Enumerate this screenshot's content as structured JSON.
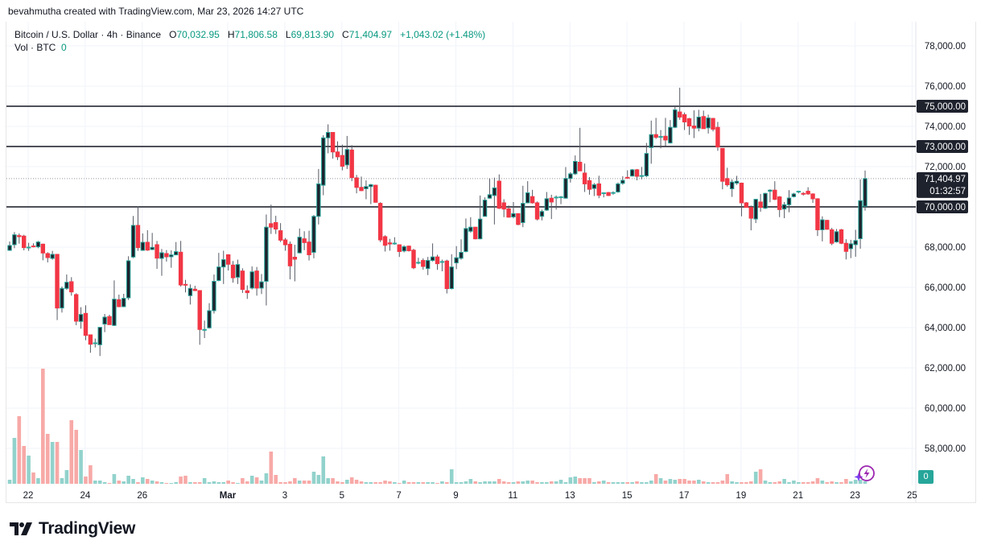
{
  "credit": "bevahmutha created with TradingView.com, Mar 23, 2026 14:27 UTC",
  "legend": {
    "symbol": "Bitcoin / U.S. Dollar · 4h · Binance",
    "open_label": "O",
    "open": "70,032.95",
    "high_label": "H",
    "high": "71,806.58",
    "low_label": "L",
    "low": "69,813.90",
    "close_label": "C",
    "close": "71,404.97",
    "change": "+1,043.02 (+1.48%)",
    "vol_label": "Vol · BTC",
    "vol_value": "0"
  },
  "price_axis": {
    "ticks": [
      "78,000.00",
      "76,000.00",
      "74,000.00",
      "72,000.00",
      "70,000.00",
      "68,000.00",
      "66,000.00",
      "64,000.00",
      "62,000.00",
      "60,000.00",
      "58,000.00"
    ],
    "last_price_label": "71,404.97",
    "countdown": "01:32:57",
    "vol_badge": "0"
  },
  "time_axis": {
    "ticks": [
      "22",
      "24",
      "26",
      "Mar",
      "3",
      "5",
      "7",
      "9",
      "11",
      "13",
      "15",
      "17",
      "19",
      "21",
      "23",
      "25"
    ]
  },
  "logo": {
    "text": "TradingView"
  },
  "colors": {
    "up": "#26a69a",
    "up_body": "#1e222d",
    "down": "#f23645",
    "vol_up": "#92d2cc",
    "vol_down": "#f7a9a7",
    "level_line": "#131722",
    "text_value": "#089981",
    "assistant_icon": "#9c27b0"
  },
  "icons": {
    "assistant": "lightning-circle-icon",
    "logo": "tradingview-logo-icon"
  },
  "chart_data": {
    "type": "candlestick",
    "interval": "4h",
    "ylim": [
      57000,
      79000
    ],
    "y_ticks": [
      58000,
      60000,
      62000,
      64000,
      66000,
      68000,
      70000,
      72000,
      74000,
      76000,
      78000
    ],
    "grid": true,
    "horizontal_levels": [
      {
        "price": 75000,
        "label": "75,000.00"
      },
      {
        "price": 73000,
        "label": "73,000.00"
      },
      {
        "price": 70000,
        "label": "70,000.00"
      }
    ],
    "last_price": 71404.97,
    "candles_ohlc": [
      [
        67840,
        68280,
        67814,
        68080
      ],
      [
        68120,
        68747,
        67947,
        68614
      ],
      [
        68574,
        68680,
        68174,
        68520
      ],
      [
        68547,
        68614,
        67840,
        67974
      ],
      [
        67987,
        68214,
        67814,
        68000
      ],
      [
        68054,
        68187,
        67987,
        68014
      ],
      [
        68014,
        68307,
        67947,
        68254
      ],
      [
        68147,
        68174,
        67347,
        67707
      ],
      [
        67680,
        67747,
        67241,
        67480
      ],
      [
        67440,
        67814,
        67374,
        67640
      ],
      [
        67640,
        67640,
        64375,
        64975
      ],
      [
        64975,
        66041,
        64748,
        65948
      ],
      [
        65948,
        66641,
        65881,
        66254
      ],
      [
        66281,
        66507,
        65588,
        65774
      ],
      [
        65641,
        65708,
        64121,
        64321
      ],
      [
        64308,
        65015,
        63948,
        64655
      ],
      [
        64708,
        65108,
        63375,
        63615
      ],
      [
        63641,
        63641,
        62749,
        63175
      ],
      [
        63215,
        63455,
        63015,
        63241
      ],
      [
        63148,
        64015,
        62589,
        64015
      ],
      [
        64175,
        64681,
        63775,
        64521
      ],
      [
        64548,
        64641,
        64148,
        64148
      ],
      [
        64108,
        66348,
        64081,
        65415
      ],
      [
        65388,
        65641,
        65015,
        65041
      ],
      [
        65041,
        65681,
        65015,
        65455
      ],
      [
        65481,
        67547,
        65375,
        67321
      ],
      [
        67507,
        69547,
        67454,
        69080
      ],
      [
        69080,
        70013,
        67814,
        67974
      ],
      [
        67840,
        68680,
        67814,
        68240
      ],
      [
        68240,
        68840,
        67814,
        67854
      ],
      [
        67880,
        68707,
        67854,
        67987
      ],
      [
        68121,
        68307,
        66921,
        67454
      ],
      [
        67440,
        67907,
        66574,
        67721
      ],
      [
        67680,
        67854,
        67281,
        67521
      ],
      [
        67521,
        67841,
        66974,
        67614
      ],
      [
        67614,
        68254,
        67600,
        67774
      ],
      [
        67747,
        68307,
        66041,
        66121
      ],
      [
        66148,
        66374,
        65748,
        66121
      ],
      [
        65588,
        66148,
        65148,
        65948
      ],
      [
        65908,
        66081,
        65815,
        65841
      ],
      [
        65841,
        65841,
        63148,
        63908
      ],
      [
        63882,
        64348,
        63482,
        63908
      ],
      [
        63988,
        65215,
        63948,
        64841
      ],
      [
        64841,
        66638,
        64700,
        66301
      ],
      [
        66342,
        67714,
        66301,
        67014
      ],
      [
        67014,
        67822,
        66167,
        67377
      ],
      [
        67620,
        67647,
        66839,
        67149
      ],
      [
        67108,
        67310,
        66234,
        66476
      ],
      [
        66503,
        67377,
        66167,
        67135
      ],
      [
        66812,
        66947,
        65723,
        65898
      ],
      [
        65831,
        66100,
        65427,
        65737
      ],
      [
        65965,
        67041,
        65898,
        66772
      ],
      [
        66812,
        67014,
        65589,
        65965
      ],
      [
        65965,
        66664,
        65669,
        66274
      ],
      [
        66301,
        69623,
        65100,
        68991
      ],
      [
        69166,
        70108,
        68655,
        68991
      ],
      [
        69220,
        69556,
        68655,
        68897
      ],
      [
        68816,
        69193,
        68252,
        68346
      ],
      [
        68359,
        68453,
        67821,
        68117
      ],
      [
        68144,
        68278,
        66396,
        67068
      ],
      [
        67500,
        68117,
        66300,
        67400
      ],
      [
        67714,
        68924,
        67687,
        68494
      ],
      [
        68413,
        68790,
        67848,
        68225
      ],
      [
        68252,
        68816,
        67337,
        67620
      ],
      [
        67741,
        69596,
        67445,
        69529
      ],
      [
        69529,
        71883,
        69126,
        71143
      ],
      [
        71076,
        73564,
        70578,
        73430
      ],
      [
        73430,
        74102,
        72663,
        73699
      ],
      [
        73699,
        73699,
        72394,
        72730
      ],
      [
        72730,
        73255,
        72327,
        72488
      ],
      [
        72555,
        73094,
        71816,
        72018
      ],
      [
        72085,
        73524,
        71883,
        72851
      ],
      [
        72824,
        73067,
        71278,
        71453
      ],
      [
        71439,
        71587,
        70673,
        70968
      ],
      [
        70968,
        71506,
        70780,
        70807
      ],
      [
        70901,
        71318,
        70377,
        71009
      ],
      [
        71009,
        71143,
        70135,
        71103
      ],
      [
        71076,
        71103,
        70202,
        70229
      ],
      [
        70175,
        70229,
        68252,
        68359
      ],
      [
        68521,
        68588,
        67781,
        68090
      ],
      [
        68211,
        68413,
        67821,
        68157
      ],
      [
        68185,
        68494,
        68117,
        68198
      ],
      [
        68117,
        68117,
        67512,
        67781
      ],
      [
        67808,
        68090,
        67741,
        68023
      ],
      [
        68050,
        68077,
        67781,
        67821
      ],
      [
        67848,
        67915,
        66906,
        66974
      ],
      [
        67230,
        67472,
        67149,
        67243
      ],
      [
        67337,
        67445,
        66879,
        67041
      ],
      [
        66934,
        67512,
        66611,
        67337
      ],
      [
        67337,
        68185,
        67283,
        67512
      ],
      [
        67512,
        67620,
        66868,
        67176
      ],
      [
        67270,
        67377,
        66799,
        67283
      ],
      [
        67310,
        67377,
        65696,
        65938
      ],
      [
        65938,
        67647,
        65898,
        67014
      ],
      [
        67216,
        68050,
        66906,
        67472
      ],
      [
        67445,
        68386,
        67377,
        67741
      ],
      [
        67781,
        69421,
        67741,
        68924
      ],
      [
        68790,
        69488,
        68722,
        68991
      ],
      [
        68991,
        68991,
        68386,
        68413
      ],
      [
        68413,
        70565,
        68386,
        69394
      ],
      [
        69529,
        70471,
        69529,
        70336
      ],
      [
        70431,
        71412,
        70404,
        70605
      ],
      [
        70565,
        71453,
        69126,
        70942
      ],
      [
        71278,
        71614,
        69892,
        69933
      ],
      [
        70202,
        70377,
        69489,
        69892
      ],
      [
        69906,
        70067,
        69462,
        69489
      ],
      [
        69502,
        70242,
        69435,
        69663
      ],
      [
        69663,
        69663,
        69085,
        69126
      ],
      [
        69220,
        71049,
        68991,
        70175
      ],
      [
        70202,
        71278,
        70175,
        70699
      ],
      [
        70511,
        70847,
        70161,
        70202
      ],
      [
        70202,
        70269,
        69328,
        69395
      ],
      [
        69529,
        69865,
        69328,
        69771
      ],
      [
        69839,
        70740,
        69798,
        70404
      ],
      [
        70431,
        70605,
        69395,
        70242
      ],
      [
        70471,
        70565,
        69865,
        70484
      ],
      [
        70484,
        70538,
        70134,
        70498
      ],
      [
        70431,
        71977,
        70404,
        71412
      ],
      [
        71412,
        71722,
        71210,
        71641
      ],
      [
        71641,
        72556,
        71587,
        72260
      ],
      [
        72219,
        73927,
        71789,
        71789
      ],
      [
        71681,
        72152,
        70740,
        71143
      ],
      [
        71305,
        71480,
        70605,
        70874
      ],
      [
        70915,
        71184,
        70538,
        71103
      ],
      [
        71143,
        71547,
        70431,
        70578
      ],
      [
        70686,
        70699,
        70471,
        70699
      ],
      [
        70713,
        70740,
        70538,
        70565
      ],
      [
        70673,
        70767,
        70605,
        70713
      ],
      [
        70740,
        71210,
        70699,
        71143
      ],
      [
        71170,
        71520,
        71103,
        71318
      ],
      [
        71466,
        71816,
        71412,
        71439
      ],
      [
        71533,
        71883,
        71506,
        71843
      ],
      [
        71843,
        71883,
        71318,
        71520
      ],
      [
        71541,
        71983,
        71367,
        71555
      ],
      [
        71541,
        73176,
        71474,
        72653
      ],
      [
        72948,
        74288,
        72144,
        73591
      ],
      [
        73591,
        74422,
        73377,
        73457
      ],
      [
        73484,
        73819,
        72908,
        73497
      ],
      [
        73511,
        74422,
        73015,
        73323
      ],
      [
        73176,
        74315,
        73149,
        73953
      ],
      [
        73953,
        74958,
        73913,
        74824
      ],
      [
        74717,
        75923,
        74328,
        74462
      ],
      [
        74583,
        74690,
        73819,
        74221
      ],
      [
        74382,
        74422,
        73578,
        74020
      ],
      [
        74020,
        74797,
        73417,
        73913
      ],
      [
        73913,
        74824,
        73752,
        74462
      ],
      [
        74489,
        74784,
        73886,
        73886
      ],
      [
        73926,
        74583,
        73645,
        74422
      ],
      [
        74395,
        74422,
        73752,
        73859
      ],
      [
        73953,
        74221,
        72787,
        72975
      ],
      [
        72908,
        72908,
        70871,
        71273
      ],
      [
        71407,
        71943,
        71005,
        71099
      ],
      [
        70898,
        71367,
        70496,
        71233
      ],
      [
        71179,
        71541,
        71099,
        71273
      ],
      [
        71179,
        71206,
        69531,
        70201
      ],
      [
        70201,
        70241,
        69960,
        69973
      ],
      [
        69973,
        70067,
        68834,
        69437
      ],
      [
        69397,
        70402,
        69196,
        70375
      ],
      [
        70241,
        70643,
        69759,
        69973
      ],
      [
        69933,
        70697,
        69893,
        70670
      ],
      [
        70777,
        70871,
        70228,
        70831
      ],
      [
        70831,
        71273,
        70335,
        70375
      ],
      [
        70496,
        70536,
        69491,
        69866
      ],
      [
        69893,
        70241,
        69437,
        70107
      ],
      [
        70107,
        70831,
        69732,
        70442
      ],
      [
        70509,
        70697,
        70469,
        70643
      ],
      [
        70764,
        70804,
        70670,
        70777
      ],
      [
        70670,
        70737,
        70563,
        70643
      ],
      [
        70777,
        70978,
        70603,
        70643
      ],
      [
        70643,
        70670,
        70201,
        70402
      ],
      [
        70402,
        70429,
        68553,
        68861
      ],
      [
        68861,
        69531,
        68285,
        69357
      ],
      [
        69330,
        69357,
        68861,
        68888
      ],
      [
        68861,
        68955,
        68097,
        68191
      ],
      [
        68258,
        68901,
        68218,
        68767
      ],
      [
        68861,
        68901,
        68151,
        68191
      ],
      [
        68191,
        68392,
        67387,
        67789
      ],
      [
        67923,
        68365,
        67454,
        68164
      ],
      [
        68124,
        68861,
        67521,
        68325
      ],
      [
        68419,
        71367,
        67923,
        70308
      ],
      [
        70032.95,
        71806.58,
        69813.9,
        71404.97
      ]
    ],
    "volume_relative": [
      5,
      57,
      84,
      47,
      35,
      14,
      7,
      143,
      62,
      52,
      52,
      7,
      17,
      79,
      67,
      42,
      9,
      23,
      4,
      4,
      2,
      1,
      12,
      4,
      3,
      10,
      6,
      2,
      8,
      6,
      4,
      3,
      2,
      1,
      1,
      2,
      9,
      10,
      2,
      2,
      2,
      7,
      2,
      3,
      2,
      2,
      4,
      2,
      1,
      7,
      3,
      10,
      8,
      4,
      13,
      40,
      11,
      2,
      2,
      3,
      7,
      4,
      4,
      4,
      15,
      11,
      34,
      7,
      7,
      3,
      2,
      5,
      8,
      5,
      3,
      2,
      2,
      2,
      2,
      4,
      3,
      2,
      1,
      4,
      2,
      2,
      2,
      2,
      2,
      2,
      1,
      3,
      2,
      18,
      2,
      2,
      3,
      6,
      3,
      2,
      3,
      3,
      3,
      6,
      3,
      2,
      2,
      3,
      3,
      4,
      4,
      2,
      2,
      2,
      3,
      3,
      5,
      2,
      8,
      9,
      7,
      7,
      7,
      2,
      3,
      4,
      2,
      2,
      2,
      2,
      2,
      2,
      3,
      2,
      2,
      4,
      12,
      7,
      4,
      6,
      5,
      6,
      6,
      4,
      4,
      5,
      3,
      2,
      2,
      2,
      4,
      12,
      3,
      2,
      2,
      2,
      3,
      15,
      18,
      4,
      2,
      2,
      3,
      6,
      2,
      4,
      2,
      2,
      2,
      3,
      7,
      4,
      2,
      3,
      2,
      2,
      6,
      3,
      5,
      5,
      3
    ]
  }
}
